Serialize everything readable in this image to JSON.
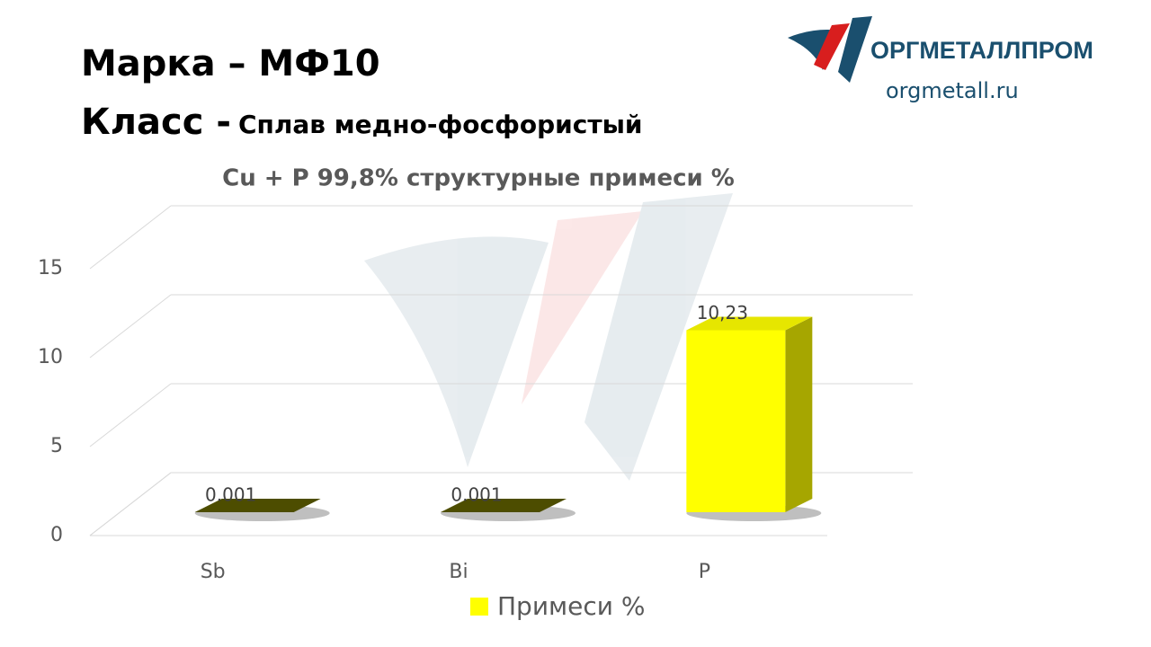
{
  "header": {
    "title": "Марка – МФ10",
    "class_label": "Класс - ",
    "class_value": "Сплав медно-фосфористый"
  },
  "logo": {
    "name": "ОРГМЕТАЛЛПРОМ",
    "url": "orgmetall.ru"
  },
  "chart_data": {
    "type": "bar3d",
    "title": "Cu + P 99,8% структурные примеси %",
    "categories": [
      "Sb",
      "Bi",
      "P"
    ],
    "series": [
      {
        "name": "Примеси %",
        "color": "#ffff00",
        "values": [
          0.001,
          0.001,
          10.23
        ],
        "value_labels": [
          "0.001",
          "0.001",
          "10,23"
        ]
      }
    ],
    "ylim": [
      0,
      15
    ],
    "yticks": [
      0,
      5,
      10,
      15
    ],
    "grid": true,
    "legend": "bottom"
  }
}
